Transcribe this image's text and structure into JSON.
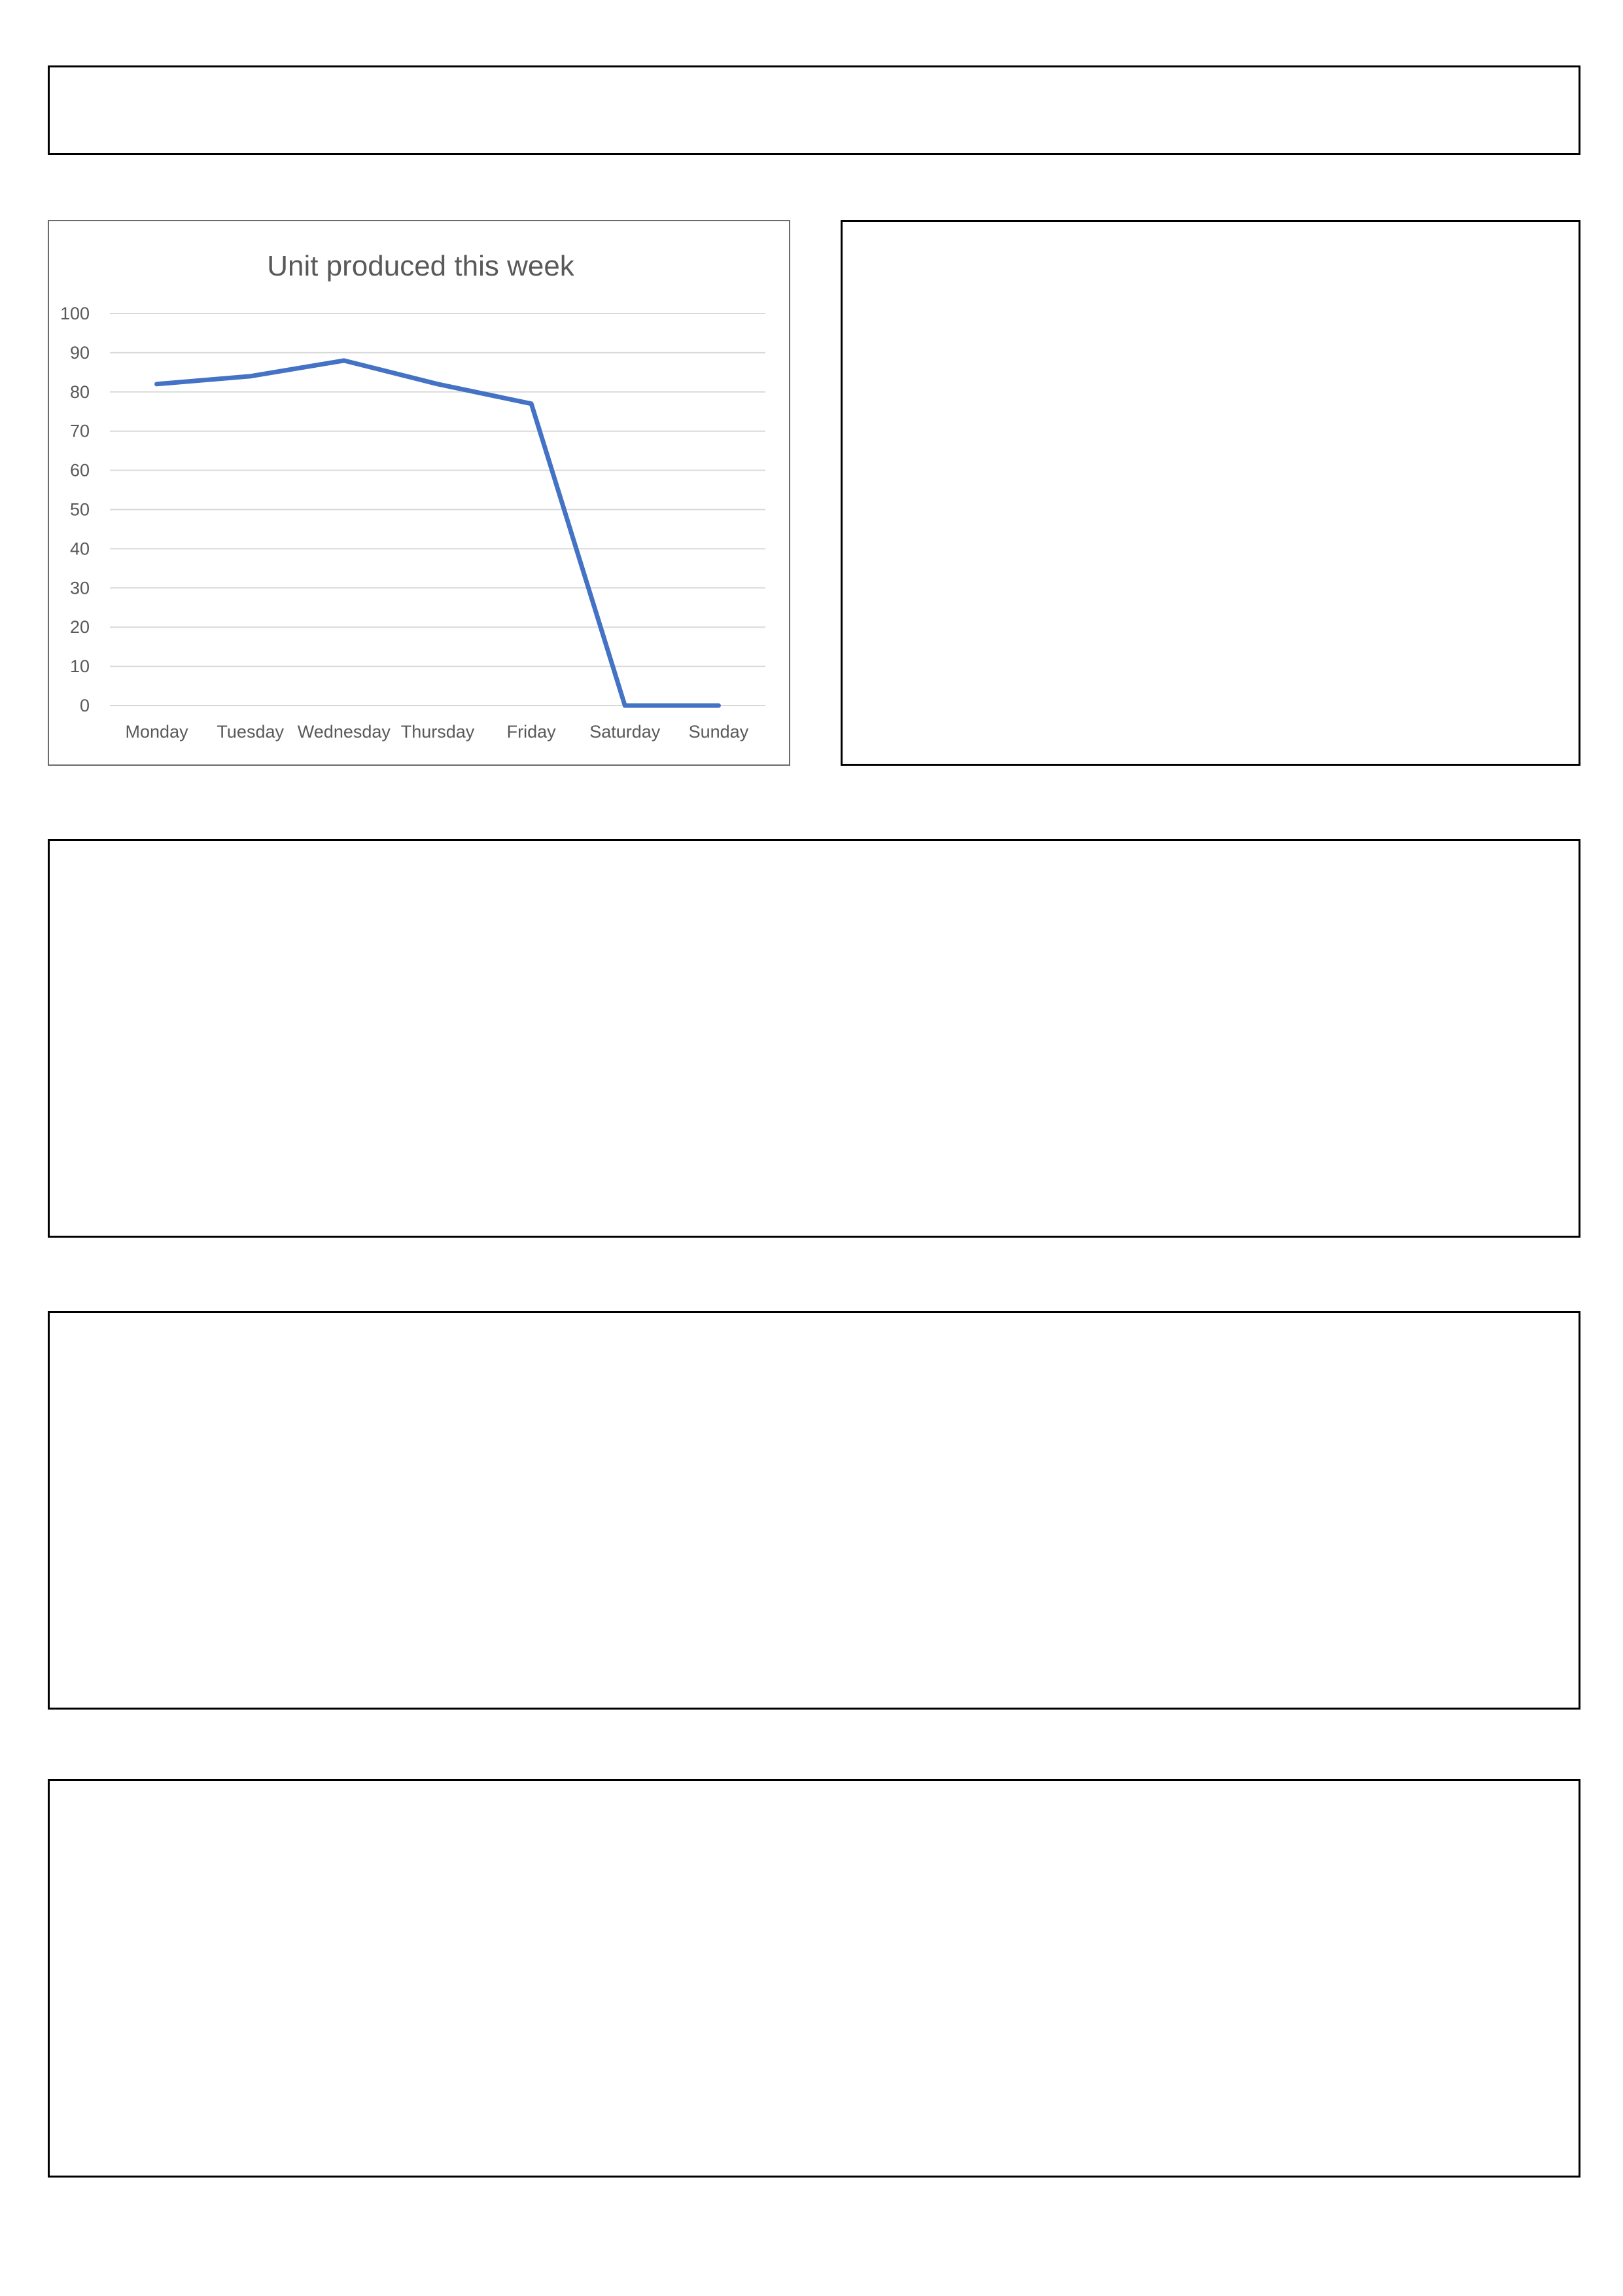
{
  "chart_data": {
    "type": "line",
    "title": "Unit produced this week",
    "xlabel": "",
    "ylabel": "",
    "categories": [
      "Monday",
      "Tuesday",
      "Wednesday",
      "Thursday",
      "Friday",
      "Saturday",
      "Sunday"
    ],
    "values": [
      82,
      84,
      88,
      82,
      77,
      0,
      0
    ],
    "ylim": [
      0,
      100
    ],
    "yticks": [
      0,
      10,
      20,
      30,
      40,
      50,
      60,
      70,
      80,
      90,
      100
    ],
    "grid": true,
    "legend": "none",
    "series_color": "#4472c4"
  }
}
